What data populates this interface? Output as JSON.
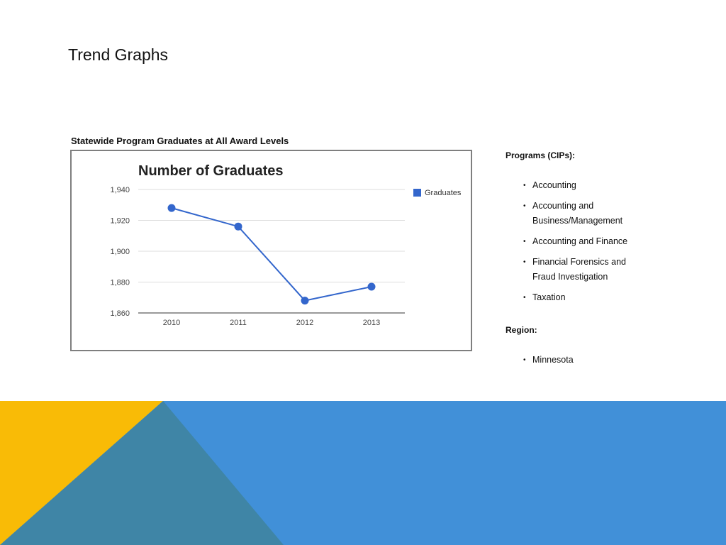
{
  "slide": {
    "title": "Trend Graphs"
  },
  "chart_caption": "Statewide Program Graduates at All Award Levels",
  "chart_data": {
    "type": "line",
    "title": "Number of Graduates",
    "categories": [
      "2010",
      "2011",
      "2012",
      "2013"
    ],
    "series": [
      {
        "name": "Graduates",
        "values": [
          1928,
          1916,
          1868,
          1877
        ],
        "color": "#3366cc"
      }
    ],
    "ylim": [
      1860,
      1940
    ],
    "yticks": [
      1860,
      1880,
      1900,
      1920,
      1940
    ],
    "ytick_labels": [
      "1,860",
      "1,880",
      "1,900",
      "1,920",
      "1,940"
    ],
    "grid": true,
    "legend_position": "right"
  },
  "programs": {
    "heading": "Programs (CIPs):",
    "items": [
      "Accounting",
      "Accounting and Business/Management",
      "Accounting and Finance",
      "Financial Forensics and Fraud Investigation",
      "Taxation"
    ]
  },
  "region": {
    "heading": "Region:",
    "items": [
      "Minnesota"
    ]
  },
  "decor_colors": {
    "yellow": "#f9bb06",
    "blue": "#4190d8",
    "teal": "#3f85a6"
  }
}
